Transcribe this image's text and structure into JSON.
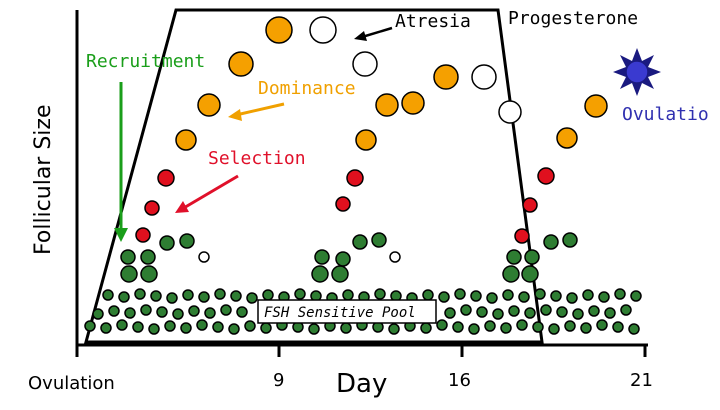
{
  "labels": {
    "y_axis": "Follicular Size",
    "x_axis": "Day",
    "recruitment": "Recruitment",
    "dominance": "Dominance",
    "selection": "Selection",
    "atresia": "Atresia",
    "progesterone": "Progesterone",
    "ovulation_event": "Ovulatio",
    "fsh_pool": "FSH Sensitive Pool"
  },
  "ticks": [
    "Ovulation",
    "9",
    "16",
    "21"
  ],
  "colors": {
    "axis": "#000000",
    "pool_follicle": "#2e7d32",
    "selected_follicle": "#e0101e",
    "dominant_follicle": "#f5a000",
    "atretic_follicle": "#ffffff",
    "ovulating_follicle": "#3a3ad0",
    "recruitment_arrow": "#1a9e1a",
    "dominance_text": "#f0a000",
    "selection_text": "#e0102a",
    "ovulation_text": "#3030b0"
  },
  "legend_icons": {
    "ovulation_marker": "star-burst-icon"
  }
}
